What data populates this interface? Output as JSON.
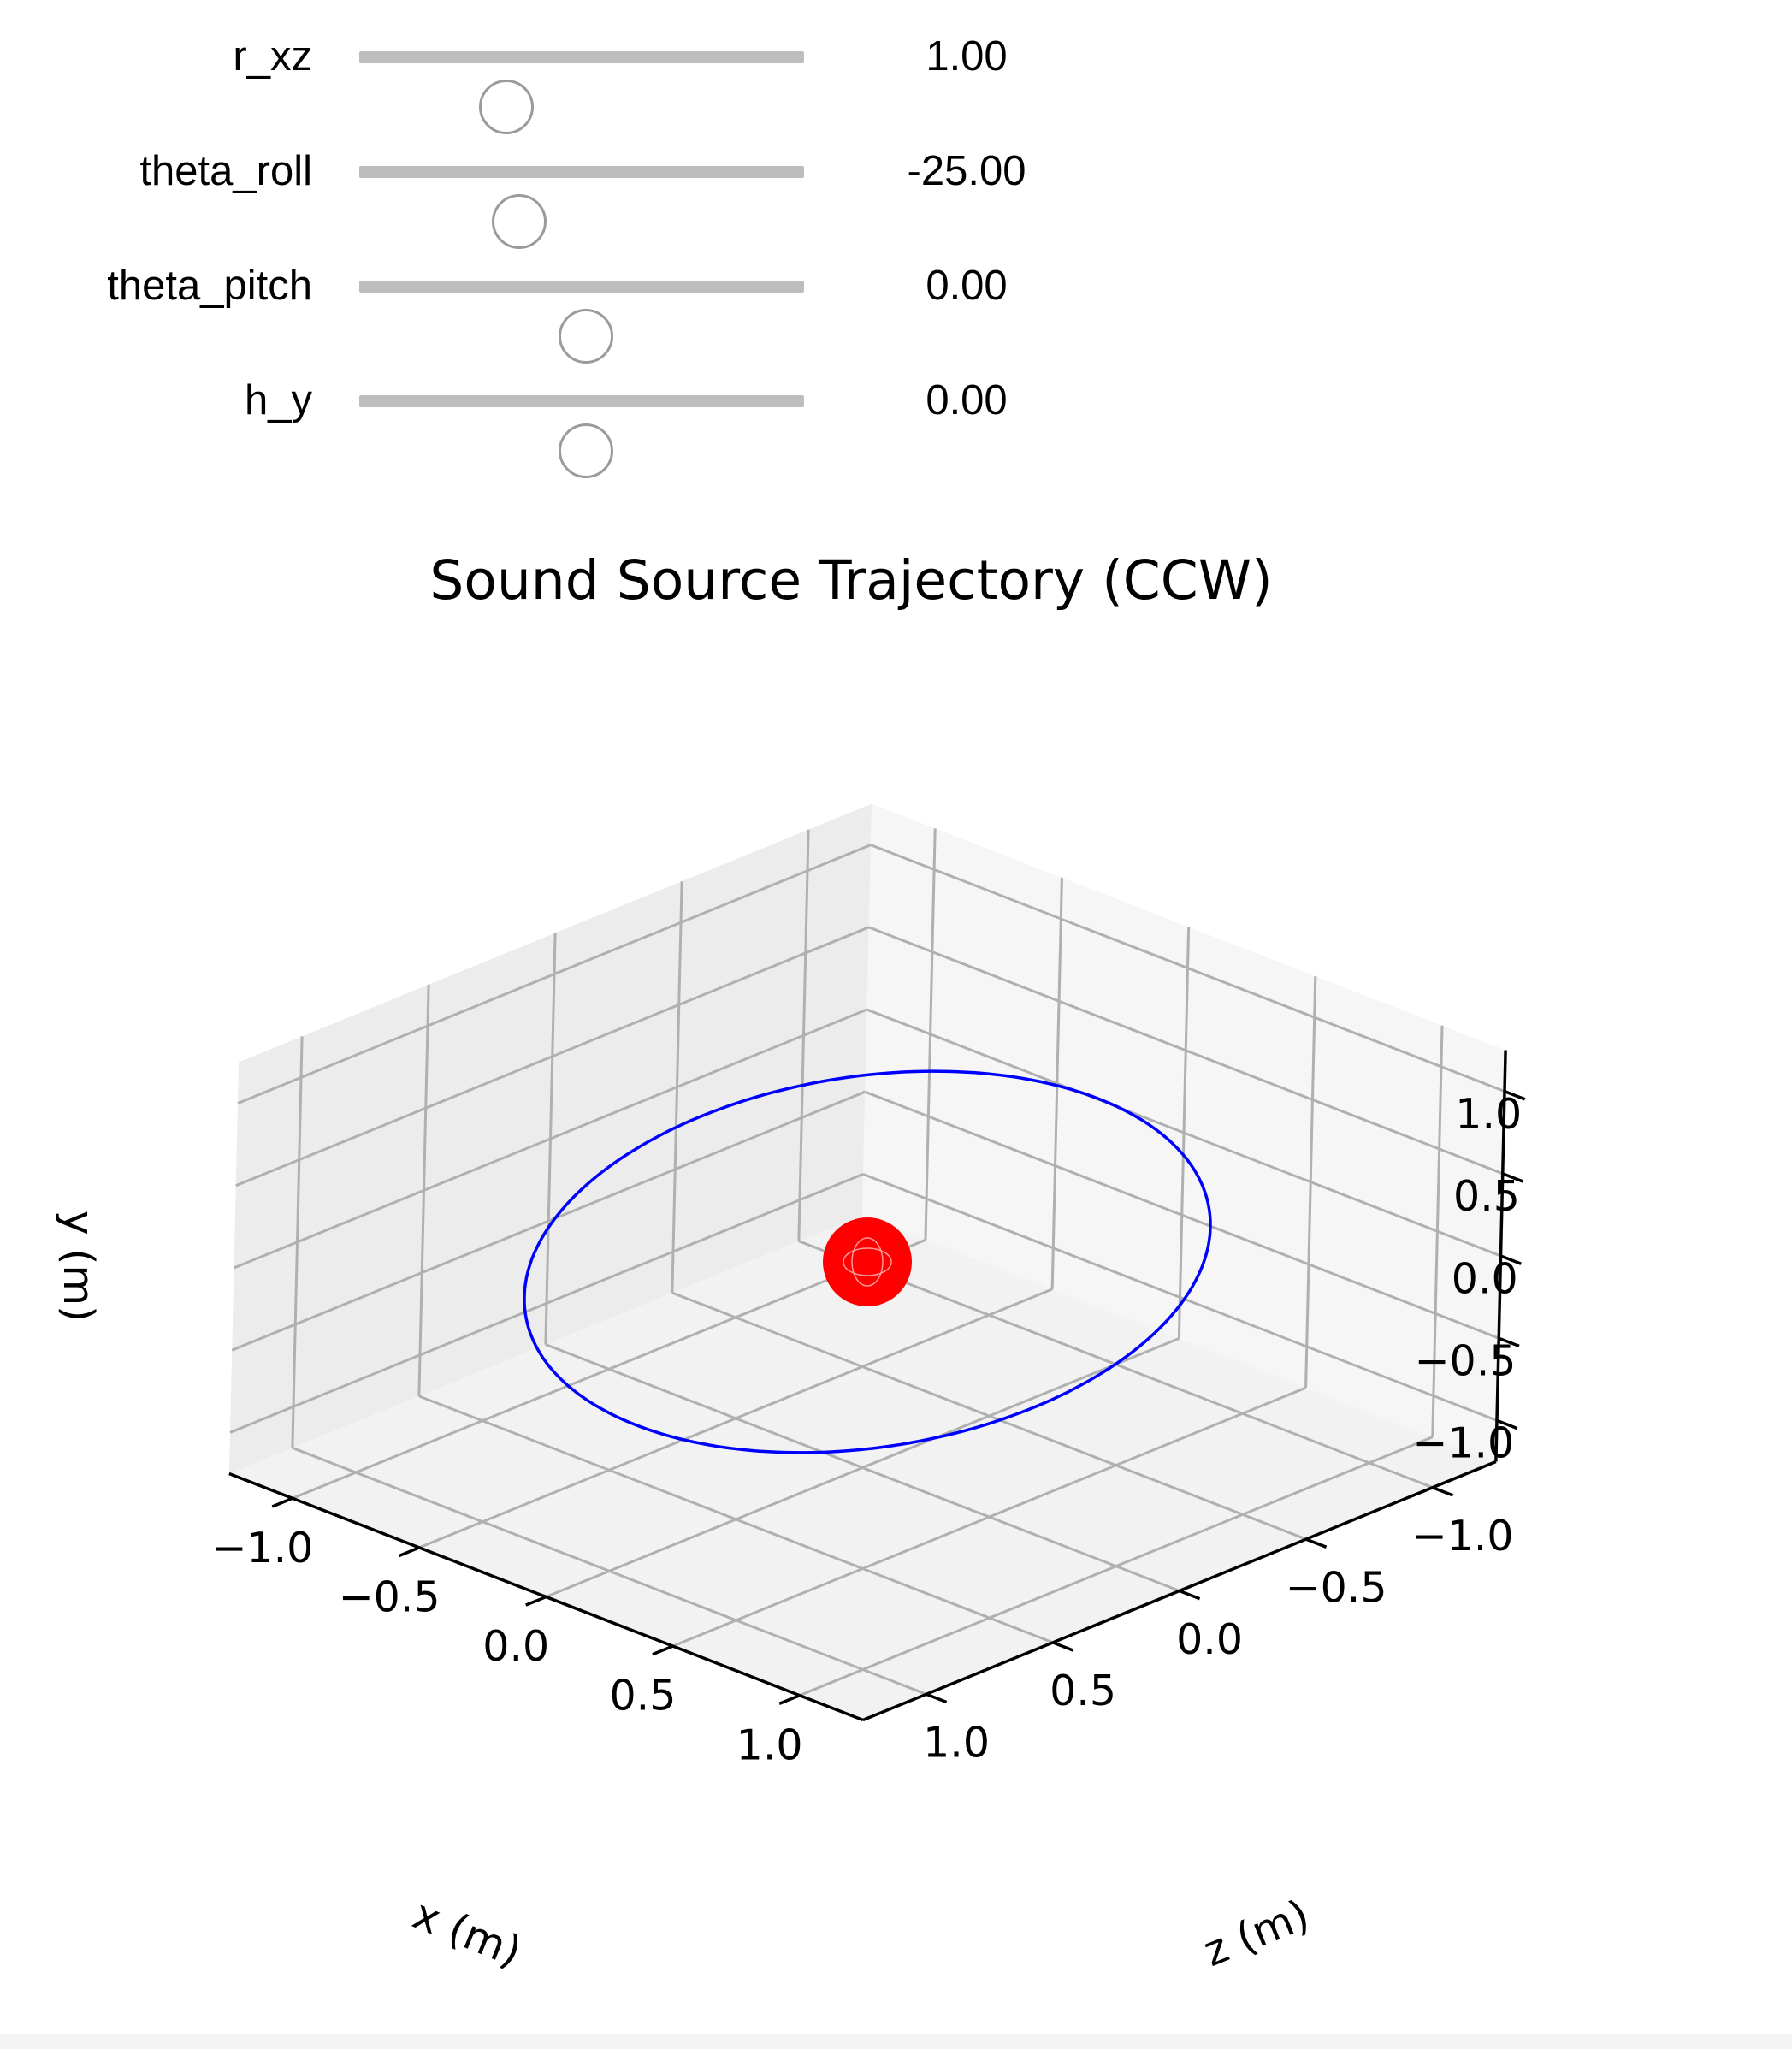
{
  "sliders": [
    {
      "label": "r_xz",
      "value": 1.0,
      "value_text": "1.00",
      "fraction": 0.33
    },
    {
      "label": "theta_roll",
      "value": -25.0,
      "value_text": "-25.00",
      "fraction": 0.36
    },
    {
      "label": "theta_pitch",
      "value": 0.0,
      "value_text": "0.00",
      "fraction": 0.51
    },
    {
      "label": "h_y",
      "value": 0.0,
      "value_text": "0.00",
      "fraction": 0.51
    }
  ],
  "chart_data": {
    "type": "line",
    "projection": "3d",
    "title": "Sound Source Trajectory (CCW)",
    "xlabel": "x (m)",
    "ylabel": "y (m)",
    "zlabel": "z (m)",
    "xlim": [
      -1.25,
      1.25
    ],
    "ylim": [
      -1.25,
      1.25
    ],
    "zlim": [
      -1.25,
      1.25
    ],
    "x_ticks": [
      "−1.0",
      "−0.5",
      "0.0",
      "0.5",
      "1.0"
    ],
    "y_ticks": [
      "−1.0",
      "−0.5",
      "0.0",
      "0.5",
      "1.0"
    ],
    "z_ticks": [
      "−1.0",
      "−0.5",
      "0.0",
      "0.5",
      "1.0"
    ],
    "grid": true,
    "series": [
      {
        "kind": "trajectory",
        "color": "#0000ff",
        "radius": 1.0,
        "roll_deg": -25,
        "pitch_deg": 0,
        "height": 0.0
      },
      {
        "kind": "source-marker",
        "color": "#ff0000",
        "x": 0,
        "y": 0,
        "z": 0
      }
    ]
  }
}
